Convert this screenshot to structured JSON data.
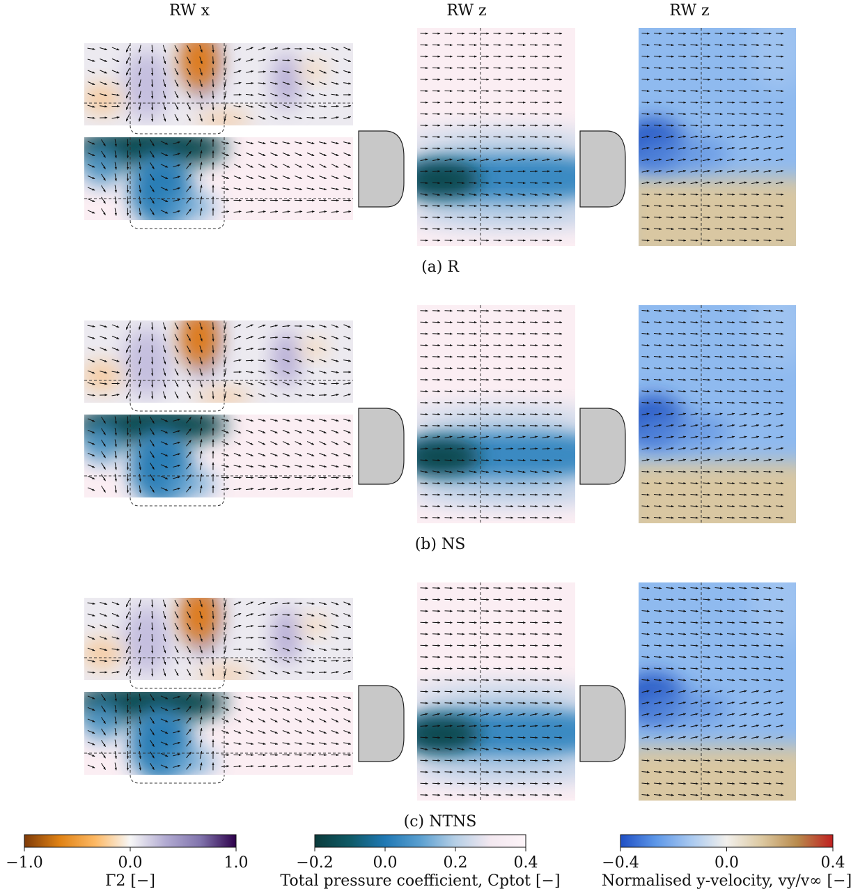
{
  "columns": [
    "RW x",
    "RW z",
    "RW z"
  ],
  "panels": [
    {
      "caption": "(a) R"
    },
    {
      "caption": "(b) NS"
    },
    {
      "caption": "(c) NTNS"
    }
  ],
  "colorbars": [
    {
      "label": "Γ2 [−]",
      "lim": [
        -1,
        1
      ],
      "colors": [
        "#7f3b08",
        "#e08214",
        "#fdb863",
        "#f7f7f7",
        "#b2abd2",
        "#8073ac",
        "#2d004b"
      ],
      "ticks": [
        {
          "value": -1,
          "label": "−1.0"
        },
        {
          "value": 0,
          "label": "0.0"
        },
        {
          "value": 1,
          "label": "1.0"
        }
      ]
    },
    {
      "label": "Total pressure coefficient, Cptot [−]",
      "lim": [
        -0.2,
        0.4
      ],
      "colors": [
        "#0b3b3b",
        "#0f5a66",
        "#1f78b4",
        "#5a9fd0",
        "#b6cfe6",
        "#f3e8f0",
        "#fdf4f8"
      ],
      "ticks": [
        {
          "value": -0.2,
          "label": "−0.2"
        },
        {
          "value": 0,
          "label": "0.0"
        },
        {
          "value": 0.2,
          "label": "0.2"
        },
        {
          "value": 0.4,
          "label": "0.4"
        }
      ]
    },
    {
      "label": "Normalised y-velocity, vy/v∞ [−]",
      "lim": [
        -0.4,
        0.4
      ],
      "colors": [
        "#1f4fc4",
        "#5d97e8",
        "#a9c9f0",
        "#f2f0ec",
        "#dcc8a0",
        "#b88a4c",
        "#c02020"
      ],
      "ticks": [
        {
          "value": -0.4,
          "label": "−0.4"
        },
        {
          "value": 0,
          "label": "0.0"
        },
        {
          "value": 0.4,
          "label": "0.4"
        }
      ]
    }
  ]
}
